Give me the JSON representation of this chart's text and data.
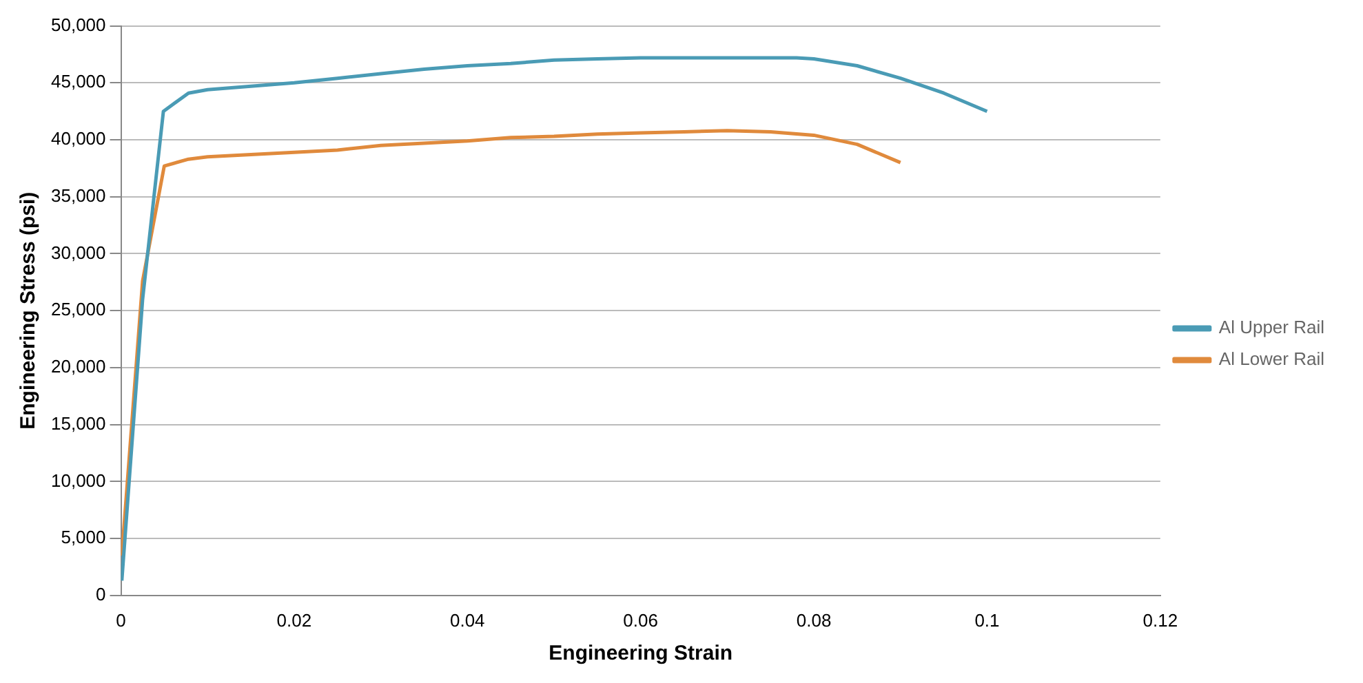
{
  "chart_data": {
    "type": "line",
    "xlabel": "Engineering Strain",
    "ylabel": "Engineering Stress (psi)",
    "xlim": [
      0,
      0.12
    ],
    "xticks": [
      0,
      0.02,
      0.04,
      0.06,
      0.08,
      0.1,
      0.12
    ],
    "ylim": [
      0,
      50000
    ],
    "yticks": [
      0,
      {
        "value": 5000,
        "label": "5,000"
      },
      {
        "value": 10000,
        "label": "10,000"
      },
      {
        "value": 15000,
        "label": "15,000"
      },
      {
        "value": 20000,
        "label": "20,000"
      },
      {
        "value": 25000,
        "label": "25,000"
      },
      {
        "value": 30000,
        "label": "30,000"
      },
      {
        "value": 35000,
        "label": "35,000"
      },
      {
        "value": 40000,
        "label": "40,000"
      },
      {
        "value": 45000,
        "label": "45,000"
      },
      {
        "value": 50000,
        "label": "50,000"
      }
    ],
    "grid": "y",
    "legend": "right",
    "marker": "none",
    "line_style": "solid",
    "series": [
      {
        "name": "Al Upper Rail",
        "color": "#4a9bb5",
        "x": [
          0.0001,
          0.0025,
          0.0049,
          0.0078,
          0.01,
          0.015,
          0.02,
          0.025,
          0.03,
          0.035,
          0.04,
          0.045,
          0.05,
          0.055,
          0.06,
          0.065,
          0.07,
          0.075,
          0.078,
          0.08,
          0.085,
          0.09,
          0.095,
          0.1
        ],
        "values": [
          1300,
          26000,
          42500,
          44100,
          44400,
          44700,
          45000,
          45400,
          45800,
          46200,
          46500,
          46700,
          47000,
          47100,
          47200,
          47200,
          47200,
          47200,
          47200,
          47100,
          46500,
          45400,
          44100,
          42500
        ]
      },
      {
        "name": "Al Lower Rail",
        "color": "#e08a3c",
        "x": [
          0.0001,
          0.0025,
          0.005,
          0.0078,
          0.01,
          0.015,
          0.02,
          0.025,
          0.03,
          0.035,
          0.04,
          0.045,
          0.05,
          0.055,
          0.06,
          0.065,
          0.07,
          0.075,
          0.08,
          0.085,
          0.09
        ],
        "values": [
          3500,
          27600,
          37700,
          38300,
          38500,
          38700,
          38900,
          39100,
          39500,
          39700,
          39900,
          40200,
          40300,
          40500,
          40600,
          40700,
          40800,
          40700,
          40400,
          39600,
          38000
        ]
      }
    ]
  }
}
